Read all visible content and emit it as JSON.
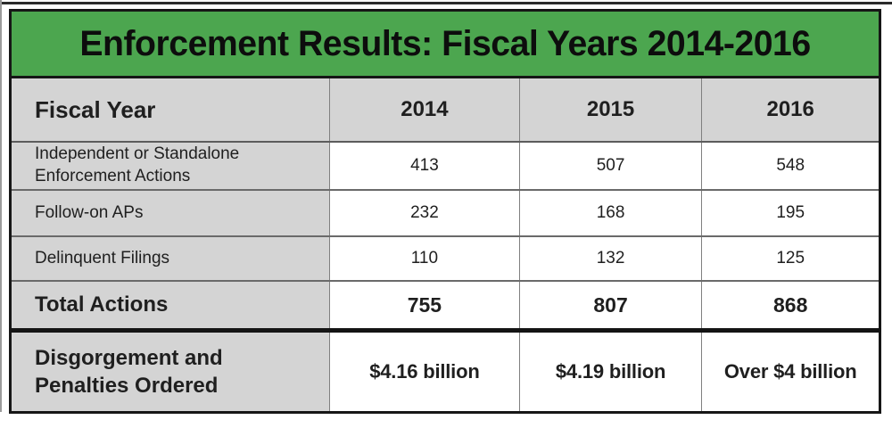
{
  "colors": {
    "banner_green": "#4ca64f",
    "cell_gray": "#d4d4d4",
    "border_dark": "#161616",
    "text_black": "#0d0d0d"
  },
  "chart_data": {
    "type": "table",
    "title": "Enforcement Results: Fiscal Years 2014-2016",
    "columns": [
      "Fiscal Year",
      "2014",
      "2015",
      "2016"
    ],
    "rows": [
      {
        "label": "Independent or Standalone Enforcement Actions",
        "values": [
          413,
          507,
          548
        ]
      },
      {
        "label": "Follow-on APs",
        "values": [
          232,
          168,
          195
        ]
      },
      {
        "label": "Delinquent Filings",
        "values": [
          110,
          132,
          125
        ]
      },
      {
        "label": "Total Actions",
        "values": [
          755,
          807,
          868
        ],
        "emphasis": "bold"
      },
      {
        "label": "Disgorgement and Penalties Ordered",
        "values": [
          "$4.16 billion",
          "$4.19 billion",
          "Over $4 billion"
        ],
        "emphasis": "bold"
      }
    ]
  }
}
